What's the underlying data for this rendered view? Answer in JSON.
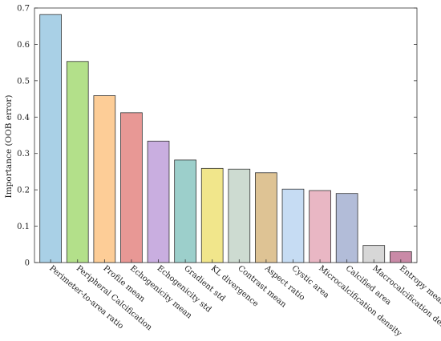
{
  "chart_data": {
    "type": "bar",
    "title": "",
    "xlabel": "",
    "ylabel": "Importance (OOB error)",
    "ylim": [
      0,
      0.7
    ],
    "yticks": [
      "0",
      "0.1",
      "0.2",
      "0.3",
      "0.4",
      "0.5",
      "0.6",
      "0.7"
    ],
    "grid": false,
    "categories": [
      "Perimeter-to-area ratio",
      "Peripheral Calcification",
      "Profile mean",
      "Echogenicity mean",
      "Echogenicity std",
      "Gradient std",
      "KL divergence",
      "Contrast mean",
      "Aspect ratio",
      "Cystic area",
      "Microcalcification density",
      "Calcified area",
      "Macrocalcification density",
      "Entropy mean"
    ],
    "values": [
      0.682,
      0.553,
      0.459,
      0.412,
      0.334,
      0.282,
      0.259,
      0.257,
      0.247,
      0.202,
      0.198,
      0.19,
      0.047,
      0.03
    ],
    "colors": [
      "#a9d0e6",
      "#b3e08a",
      "#fdcd97",
      "#e89895",
      "#c9aee0",
      "#9ccfcb",
      "#f1e68b",
      "#cddbd1",
      "#dec394",
      "#c6dcf3",
      "#e9b7c4",
      "#b2bcd8",
      "#d7d7d7",
      "#c98aa7"
    ]
  }
}
